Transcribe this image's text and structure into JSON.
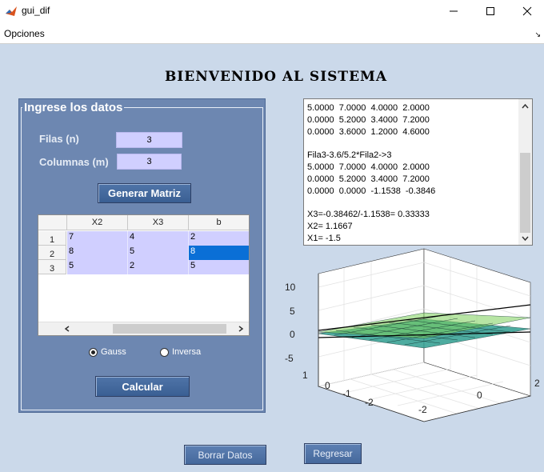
{
  "window": {
    "title": "gui_dif"
  },
  "menu": {
    "opciones": "Opciones",
    "corner_glyph": "↘"
  },
  "main_title": "BIENVENIDO AL SISTEMA",
  "panel": {
    "title": "Ingrese los datos",
    "filas_label": "Filas (n)",
    "filas_value": "3",
    "columnas_label": "Columnas (m)",
    "columnas_value": "3",
    "generar_label": "Generar Matriz"
  },
  "table": {
    "columns": [
      "X2",
      "X3",
      "b"
    ],
    "row_headers": [
      "1",
      "2",
      "3"
    ],
    "rows": [
      [
        "7",
        "4",
        "2"
      ],
      [
        "8",
        "5",
        "8"
      ],
      [
        "5",
        "2",
        "5"
      ]
    ],
    "selected_cell": "row 2, column b"
  },
  "method": {
    "gauss_label": "Gauss",
    "inversa_label": "Inversa",
    "selected": "Gauss"
  },
  "calcular_label": "Calcular",
  "output_lines": [
    "5.0000  7.0000  4.0000  2.0000",
    "0.0000  5.2000  3.4000  7.2000",
    "0.0000  3.6000  1.2000  4.6000",
    "",
    "Fila3-3.6/5.2*Fila2->3",
    "5.0000  7.0000  4.0000  2.0000",
    "0.0000  5.2000  3.4000  7.2000",
    "0.0000  0.0000  -1.1538  -0.3846",
    "",
    "X3=-0.38462/-1.1538= 0.33333",
    "X2= 1.1667",
    "X1= -1.5"
  ],
  "plot": {
    "z_ticks": [
      "10",
      "5",
      "0",
      "-5"
    ],
    "y_ticks": [
      "1",
      "0",
      "-1",
      "-2"
    ],
    "x_ticks": [
      "-2",
      "0",
      "2"
    ]
  },
  "chart_data": {
    "type": "surface",
    "description_free": true,
    "zlim": [
      -5,
      10
    ],
    "xlim": [
      -2,
      2
    ],
    "ylim": [
      -2,
      1
    ],
    "z_ticks": [
      10,
      5,
      0,
      -5
    ],
    "y_ticks": [
      1,
      0,
      -1,
      -2
    ],
    "x_ticks": [
      -2,
      0,
      2
    ],
    "grid": true
  },
  "buttons": {
    "borrar_label": "Borrar Datos",
    "regresar_label": "Regresar"
  },
  "colors": {
    "background": "#cbd9ea",
    "panel": "#6d87b1",
    "input": "#d0cfff",
    "selection": "#0a6fd6",
    "button": "#3a5f93"
  }
}
